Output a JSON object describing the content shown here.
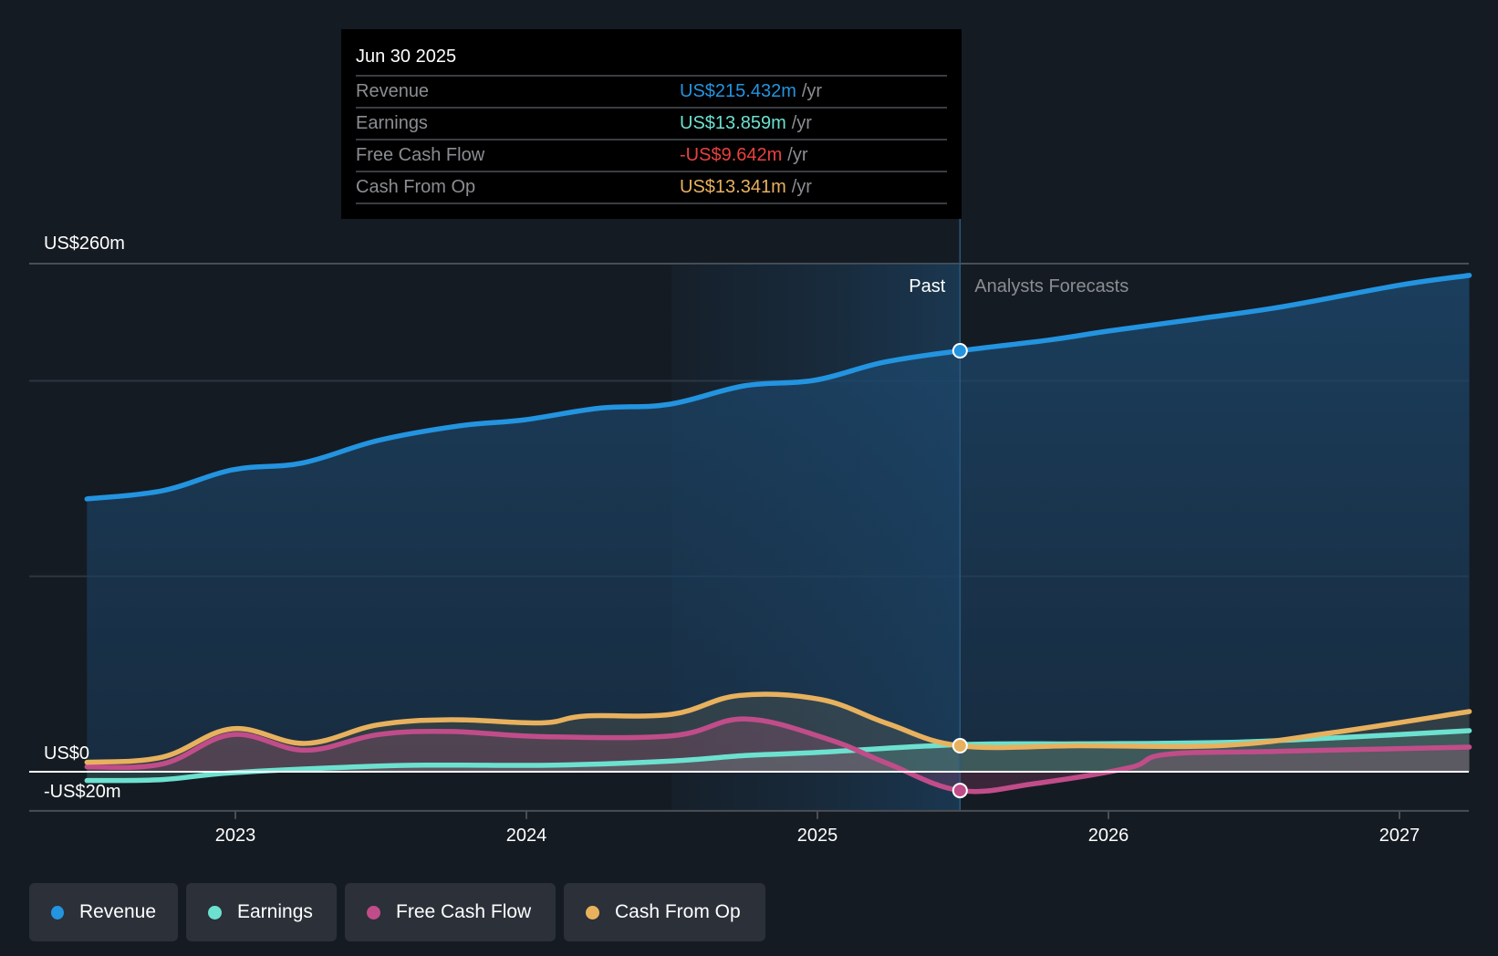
{
  "tooltip": {
    "date": "Jun 30 2025",
    "rows": [
      {
        "label": "Revenue",
        "value": "US$215.432m",
        "unit": "/yr",
        "color": "#2394e0"
      },
      {
        "label": "Earnings",
        "value": "US$13.859m",
        "unit": "/yr",
        "color": "#6de1cf"
      },
      {
        "label": "Free Cash Flow",
        "value": "-US$9.642m",
        "unit": "/yr",
        "color": "#e8413f"
      },
      {
        "label": "Cash From Op",
        "value": "US$13.341m",
        "unit": "/yr",
        "color": "#e8b15e"
      }
    ]
  },
  "legend": [
    {
      "label": "Revenue",
      "color": "#2394e0"
    },
    {
      "label": "Earnings",
      "color": "#6de1cf"
    },
    {
      "label": "Free Cash Flow",
      "color": "#c04d89"
    },
    {
      "label": "Cash From Op",
      "color": "#e8b15e"
    }
  ],
  "chart_data": {
    "type": "line",
    "title": "",
    "xlabel": "",
    "ylabel": "",
    "y_tick_labels": [
      {
        "value": 260,
        "label": "US$260m"
      },
      {
        "value": 0,
        "label": "US$0"
      },
      {
        "value": -20,
        "label": "-US$20m"
      }
    ],
    "gridlines_at": [
      260,
      200,
      100
    ],
    "ylim": [
      -20,
      260
    ],
    "xlim": [
      2022.49,
      2027.24
    ],
    "x_ticks": [
      2023,
      2024,
      2025,
      2026,
      2027
    ],
    "x_tick_labels": [
      "2023",
      "2024",
      "2025",
      "2026",
      "2027"
    ],
    "past_label": "Past",
    "forecast_label": "Analysts Forecasts",
    "now_x": 2025.49,
    "highlight_start_x": 2024.5,
    "units": "US$ millions",
    "series": [
      {
        "name": "Revenue",
        "color": "#2394e0",
        "x": [
          2022.49,
          2022.75,
          2022.99,
          2023.23,
          2023.49,
          2023.77,
          2023.99,
          2024.25,
          2024.49,
          2024.75,
          2024.99,
          2025.23,
          2025.49,
          2025.8,
          2026.0,
          2026.3,
          2026.6,
          2027.0,
          2027.24
        ],
        "y": [
          139.6,
          143.8,
          154.5,
          158,
          169.5,
          177,
          180,
          186,
          188,
          197.5,
          200.3,
          209.6,
          215.4,
          221,
          225.5,
          231.6,
          238,
          249,
          254
        ]
      },
      {
        "name": "Earnings",
        "color": "#6de1cf",
        "x": [
          2022.49,
          2022.75,
          2022.99,
          2023.47,
          2023.72,
          2024.1,
          2024.5,
          2024.75,
          2024.99,
          2025.49,
          2025.9,
          2026.4,
          2026.8,
          2027.24
        ],
        "y": [
          -4.5,
          -4,
          -0.5,
          2.8,
          3.4,
          3.4,
          5.5,
          8.3,
          9.8,
          13.9,
          14.3,
          15,
          17.5,
          21
        ]
      },
      {
        "name": "Free Cash Flow",
        "color": "#c04d89",
        "x": [
          2022.49,
          2022.75,
          2022.99,
          2023.24,
          2023.49,
          2023.74,
          2024.05,
          2024.5,
          2024.75,
          2025.03,
          2025.24,
          2025.49,
          2025.75,
          2026.07,
          2026.2,
          2026.6,
          2027.24
        ],
        "y": [
          2.5,
          4,
          19,
          11,
          19,
          20.6,
          18,
          18.4,
          27,
          17,
          4.3,
          -9.6,
          -6,
          2,
          8.9,
          10.5,
          12.6
        ]
      },
      {
        "name": "Cash From Op",
        "color": "#e8b15e",
        "x": [
          2022.49,
          2022.75,
          2022.99,
          2023.24,
          2023.49,
          2023.74,
          2024.05,
          2024.2,
          2024.5,
          2024.73,
          2025.01,
          2025.24,
          2025.49,
          2025.9,
          2026.4,
          2026.77,
          2027.24
        ],
        "y": [
          4.8,
          7.5,
          22,
          14.5,
          24,
          26.6,
          25,
          28.5,
          29.4,
          39,
          37,
          24.7,
          13.3,
          13.3,
          13.5,
          20,
          30.8
        ]
      }
    ]
  }
}
